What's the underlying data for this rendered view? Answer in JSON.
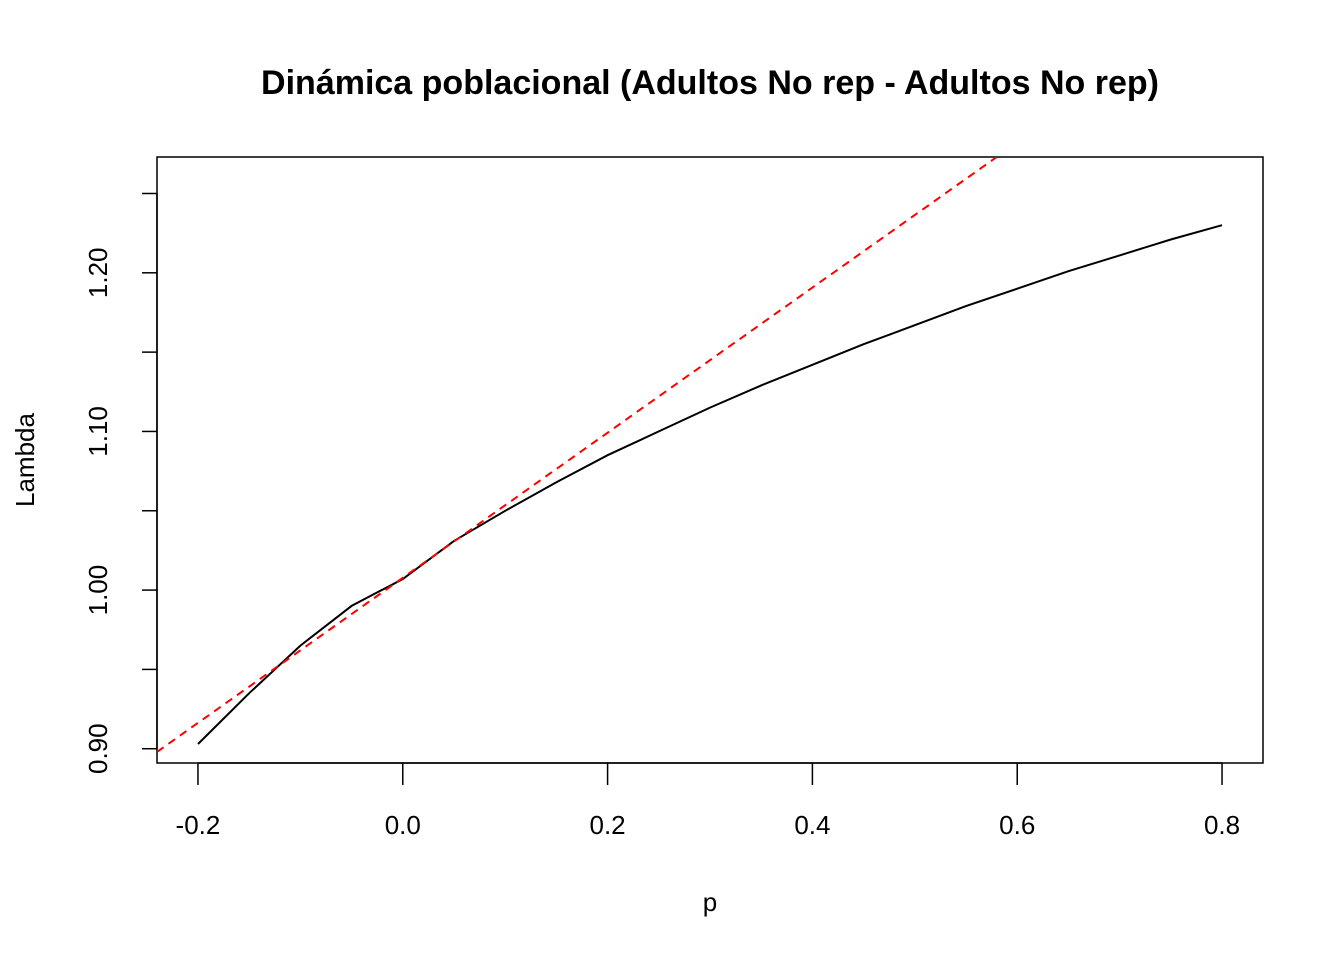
{
  "chart_data": {
    "type": "line",
    "title": "Dinámica poblacional (Adultos No rep - Adultos No rep)",
    "xlabel": "p",
    "ylabel": "Lambda",
    "xlim": [
      -0.24,
      0.84
    ],
    "ylim": [
      0.891,
      1.273
    ],
    "xticks": [
      -0.2,
      0.0,
      0.2,
      0.4,
      0.6,
      0.8
    ],
    "xtick_labels": [
      "-0.2",
      "0.0",
      "0.2",
      "0.4",
      "0.6",
      "0.8"
    ],
    "yticks": [
      0.9,
      0.95,
      1.0,
      1.05,
      1.1,
      1.15,
      1.2,
      1.25
    ],
    "ytick_labels": [
      "0.90",
      "",
      "1.00",
      "",
      "1.10",
      "",
      "1.20",
      ""
    ],
    "grid": false,
    "series": [
      {
        "style": "solid",
        "color": "#000000",
        "x": [
          -0.2,
          -0.15,
          -0.1,
          -0.05,
          0.0,
          0.05,
          0.1,
          0.15,
          0.2,
          0.25,
          0.3,
          0.35,
          0.4,
          0.45,
          0.5,
          0.55,
          0.6,
          0.65,
          0.7,
          0.75,
          0.8
        ],
        "y": [
          0.903,
          0.935,
          0.965,
          0.99,
          1.007,
          1.031,
          1.05,
          1.068,
          1.085,
          1.1,
          1.115,
          1.129,
          1.142,
          1.155,
          1.167,
          1.179,
          1.19,
          1.201,
          1.211,
          1.221,
          1.23
        ]
      },
      {
        "style": "dashed",
        "color": "#ff0000",
        "x": [
          -0.24,
          0.58
        ],
        "y": [
          0.898,
          1.273
        ]
      }
    ]
  }
}
